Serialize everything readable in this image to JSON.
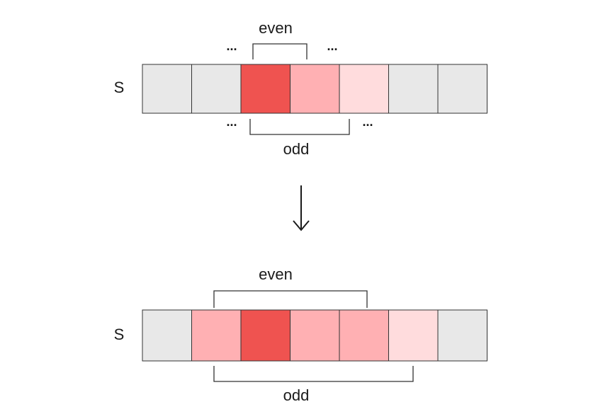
{
  "colors": {
    "gray": "#e8e8e8",
    "dark": "#ef5350",
    "mid": "#ffb0b3",
    "light": "#ffdcdd"
  },
  "top": {
    "row_label": "S",
    "cells": [
      "gray",
      "gray",
      "dark",
      "mid",
      "light",
      "gray",
      "gray"
    ],
    "even_label": "even",
    "odd_label": "odd",
    "ellipsis": "..."
  },
  "arrow": "↓",
  "bottom": {
    "row_label": "S",
    "cells": [
      "gray",
      "mid",
      "dark",
      "mid",
      "mid",
      "light",
      "gray"
    ],
    "even_label": "even",
    "odd_label": "odd"
  }
}
